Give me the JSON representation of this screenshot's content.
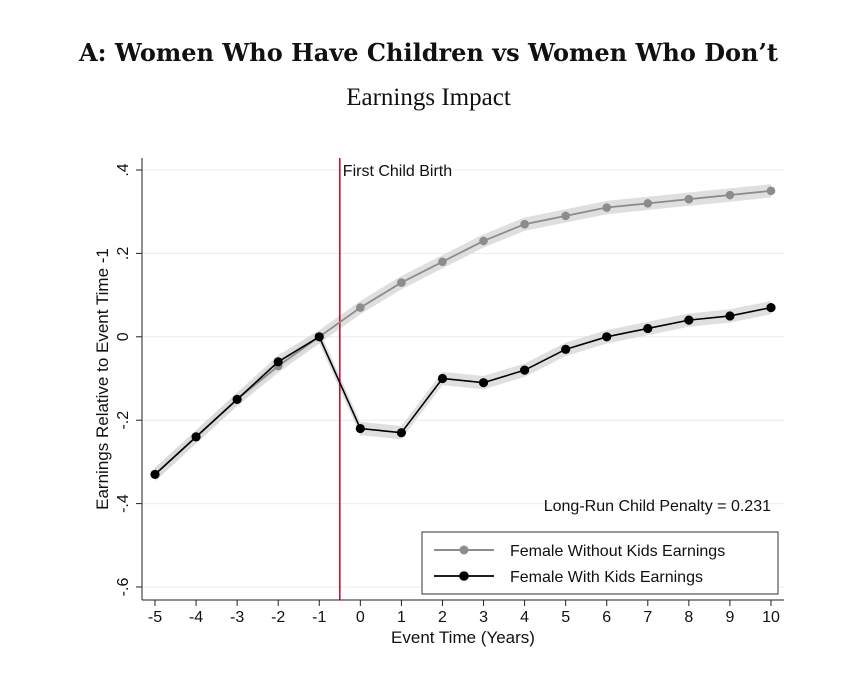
{
  "title": "A: Women Who Have Children vs Women Who Don’t",
  "subtitle": "Earnings Impact",
  "chart_data": {
    "type": "line",
    "xlabel": "Event Time (Years)",
    "ylabel": "Earnings Relative to Event Time -1",
    "x": [
      -5,
      -4,
      -3,
      -2,
      -1,
      0,
      1,
      2,
      3,
      4,
      5,
      6,
      7,
      8,
      9,
      10
    ],
    "xlim": [
      -5,
      10
    ],
    "ylim": [
      -0.6,
      0.4
    ],
    "x_ticks": [
      "-5",
      "-4",
      "-3",
      "-2",
      "-1",
      "0",
      "1",
      "2",
      "3",
      "4",
      "5",
      "6",
      "7",
      "8",
      "9",
      "10"
    ],
    "y_ticks": [
      {
        "value": -0.6,
        "label": "-.6"
      },
      {
        "value": -0.4,
        "label": "-.4"
      },
      {
        "value": -0.2,
        "label": "-.2"
      },
      {
        "value": 0,
        "label": "0"
      },
      {
        "value": 0.2,
        "label": ".2"
      },
      {
        "value": 0.4,
        "label": ".4"
      }
    ],
    "grid": true,
    "series": [
      {
        "name": "Female Without Kids Earnings",
        "color": "#8c8c8c",
        "band_color": "#d9d9d9",
        "values": [
          -0.33,
          -0.24,
          -0.15,
          -0.07,
          0.0,
          0.07,
          0.13,
          0.18,
          0.23,
          0.27,
          0.29,
          0.31,
          0.32,
          0.33,
          0.34,
          0.35
        ]
      },
      {
        "name": "Female With Kids Earnings",
        "color": "#000000",
        "band_color": "#d9d9d9",
        "values": [
          -0.33,
          -0.24,
          -0.15,
          -0.06,
          0.0,
          -0.22,
          -0.23,
          -0.1,
          -0.11,
          -0.08,
          -0.03,
          0.0,
          0.02,
          0.04,
          0.05,
          0.07
        ]
      }
    ],
    "annotations": [
      {
        "type": "vline",
        "x": -0.5,
        "color": "#c0143c",
        "label": "First Child Birth"
      },
      {
        "type": "text",
        "label": "Long-Run Child Penalty = 0.231"
      }
    ],
    "legend_position": "bottom-right"
  }
}
